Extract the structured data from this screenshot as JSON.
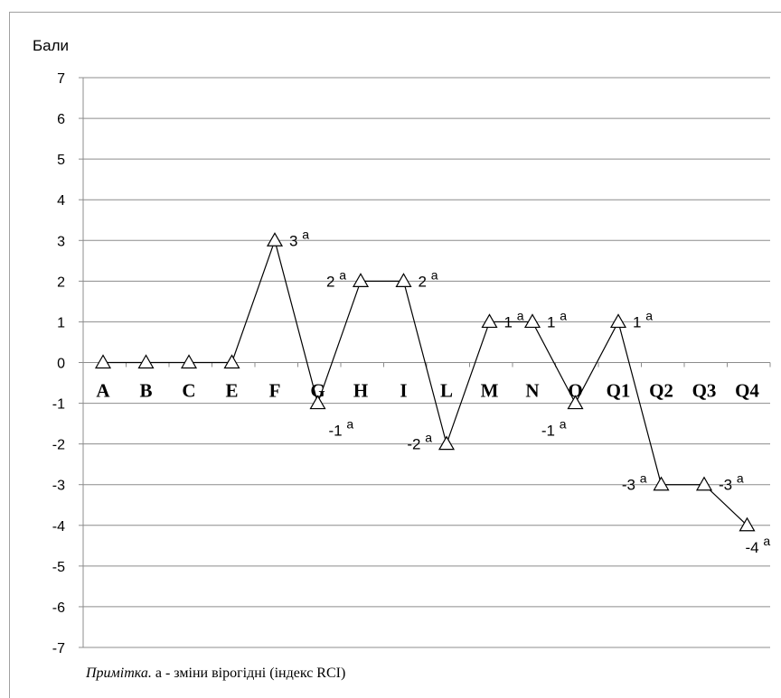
{
  "chart_data": {
    "type": "line",
    "ylabel": "Бали",
    "ylim": [
      -7,
      7
    ],
    "yticks": [
      7,
      6,
      5,
      4,
      3,
      2,
      1,
      0,
      -1,
      -2,
      -3,
      -4,
      -5,
      -6,
      -7
    ],
    "categories": [
      "A",
      "B",
      "C",
      "E",
      "F",
      "G",
      "H",
      "I",
      "L",
      "M",
      "N",
      "O",
      "Q1",
      "Q2",
      "Q3",
      "Q4"
    ],
    "series": [
      {
        "marker": "triangle",
        "color": "#000000",
        "values": [
          0,
          0,
          0,
          0,
          3,
          -1,
          2,
          2,
          -2,
          1,
          1,
          -1,
          1,
          -3,
          -3,
          -4
        ]
      }
    ],
    "annotations": [
      {
        "category": "F",
        "text": "3",
        "sup": "а",
        "pos": "right"
      },
      {
        "category": "G",
        "text": "-1",
        "sup": "а",
        "pos": "below-right"
      },
      {
        "category": "H",
        "text": "2",
        "sup": "а",
        "pos": "left"
      },
      {
        "category": "I",
        "text": "2",
        "sup": "а",
        "pos": "right"
      },
      {
        "category": "L",
        "text": "-2",
        "sup": "а",
        "pos": "left"
      },
      {
        "category": "M",
        "text": "1",
        "sup": "а",
        "pos": "right"
      },
      {
        "category": "N",
        "text": "1",
        "sup": "а",
        "pos": "right"
      },
      {
        "category": "O",
        "text": "-1",
        "sup": "а",
        "pos": "below-left"
      },
      {
        "category": "Q1",
        "text": "1",
        "sup": "а",
        "pos": "right"
      },
      {
        "category": "Q2",
        "text": "-3",
        "sup": "а",
        "pos": "left"
      },
      {
        "category": "Q3",
        "text": "-3",
        "sup": "а",
        "pos": "right"
      },
      {
        "category": "Q4",
        "text": "-4",
        "sup": "а",
        "pos": "below"
      }
    ],
    "grid": true,
    "legend": "none"
  },
  "note": {
    "prefix": "Примітка.",
    "text": " а - зміни вірогідні  (індекс RCI)"
  }
}
